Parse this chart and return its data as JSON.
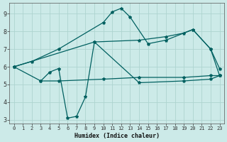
{
  "xlabel": "Humidex (Indice chaleur)",
  "ylabel": "",
  "bg_color": "#cceae8",
  "line_color": "#006060",
  "grid_color": "#aed4d0",
  "xlim": [
    -0.5,
    23.5
  ],
  "ylim": [
    2.8,
    9.6
  ],
  "xticks": [
    0,
    1,
    2,
    3,
    4,
    5,
    6,
    7,
    8,
    9,
    10,
    11,
    12,
    13,
    14,
    15,
    16,
    17,
    18,
    19,
    20,
    21,
    22,
    23
  ],
  "yticks": [
    3,
    4,
    5,
    6,
    7,
    8,
    9
  ],
  "lines": [
    {
      "x": [
        0,
        2,
        5,
        10,
        11,
        12,
        13,
        15,
        17,
        20,
        22,
        23
      ],
      "y": [
        6.0,
        6.3,
        7.0,
        8.5,
        9.1,
        9.3,
        8.8,
        7.3,
        7.5,
        8.1,
        7.0,
        5.5
      ]
    },
    {
      "x": [
        0,
        9,
        14,
        17,
        19,
        20,
        22,
        23
      ],
      "y": [
        6.0,
        7.4,
        7.5,
        7.7,
        7.9,
        8.1,
        7.0,
        5.9
      ]
    },
    {
      "x": [
        3,
        4,
        5,
        6,
        7,
        8,
        9,
        14,
        19,
        22,
        23
      ],
      "y": [
        5.2,
        5.7,
        5.9,
        3.1,
        3.2,
        4.3,
        7.4,
        5.1,
        5.2,
        5.3,
        5.5
      ]
    },
    {
      "x": [
        0,
        3,
        5,
        10,
        14,
        19,
        22,
        23
      ],
      "y": [
        6.0,
        5.2,
        5.2,
        5.3,
        5.4,
        5.4,
        5.5,
        5.5
      ]
    }
  ]
}
